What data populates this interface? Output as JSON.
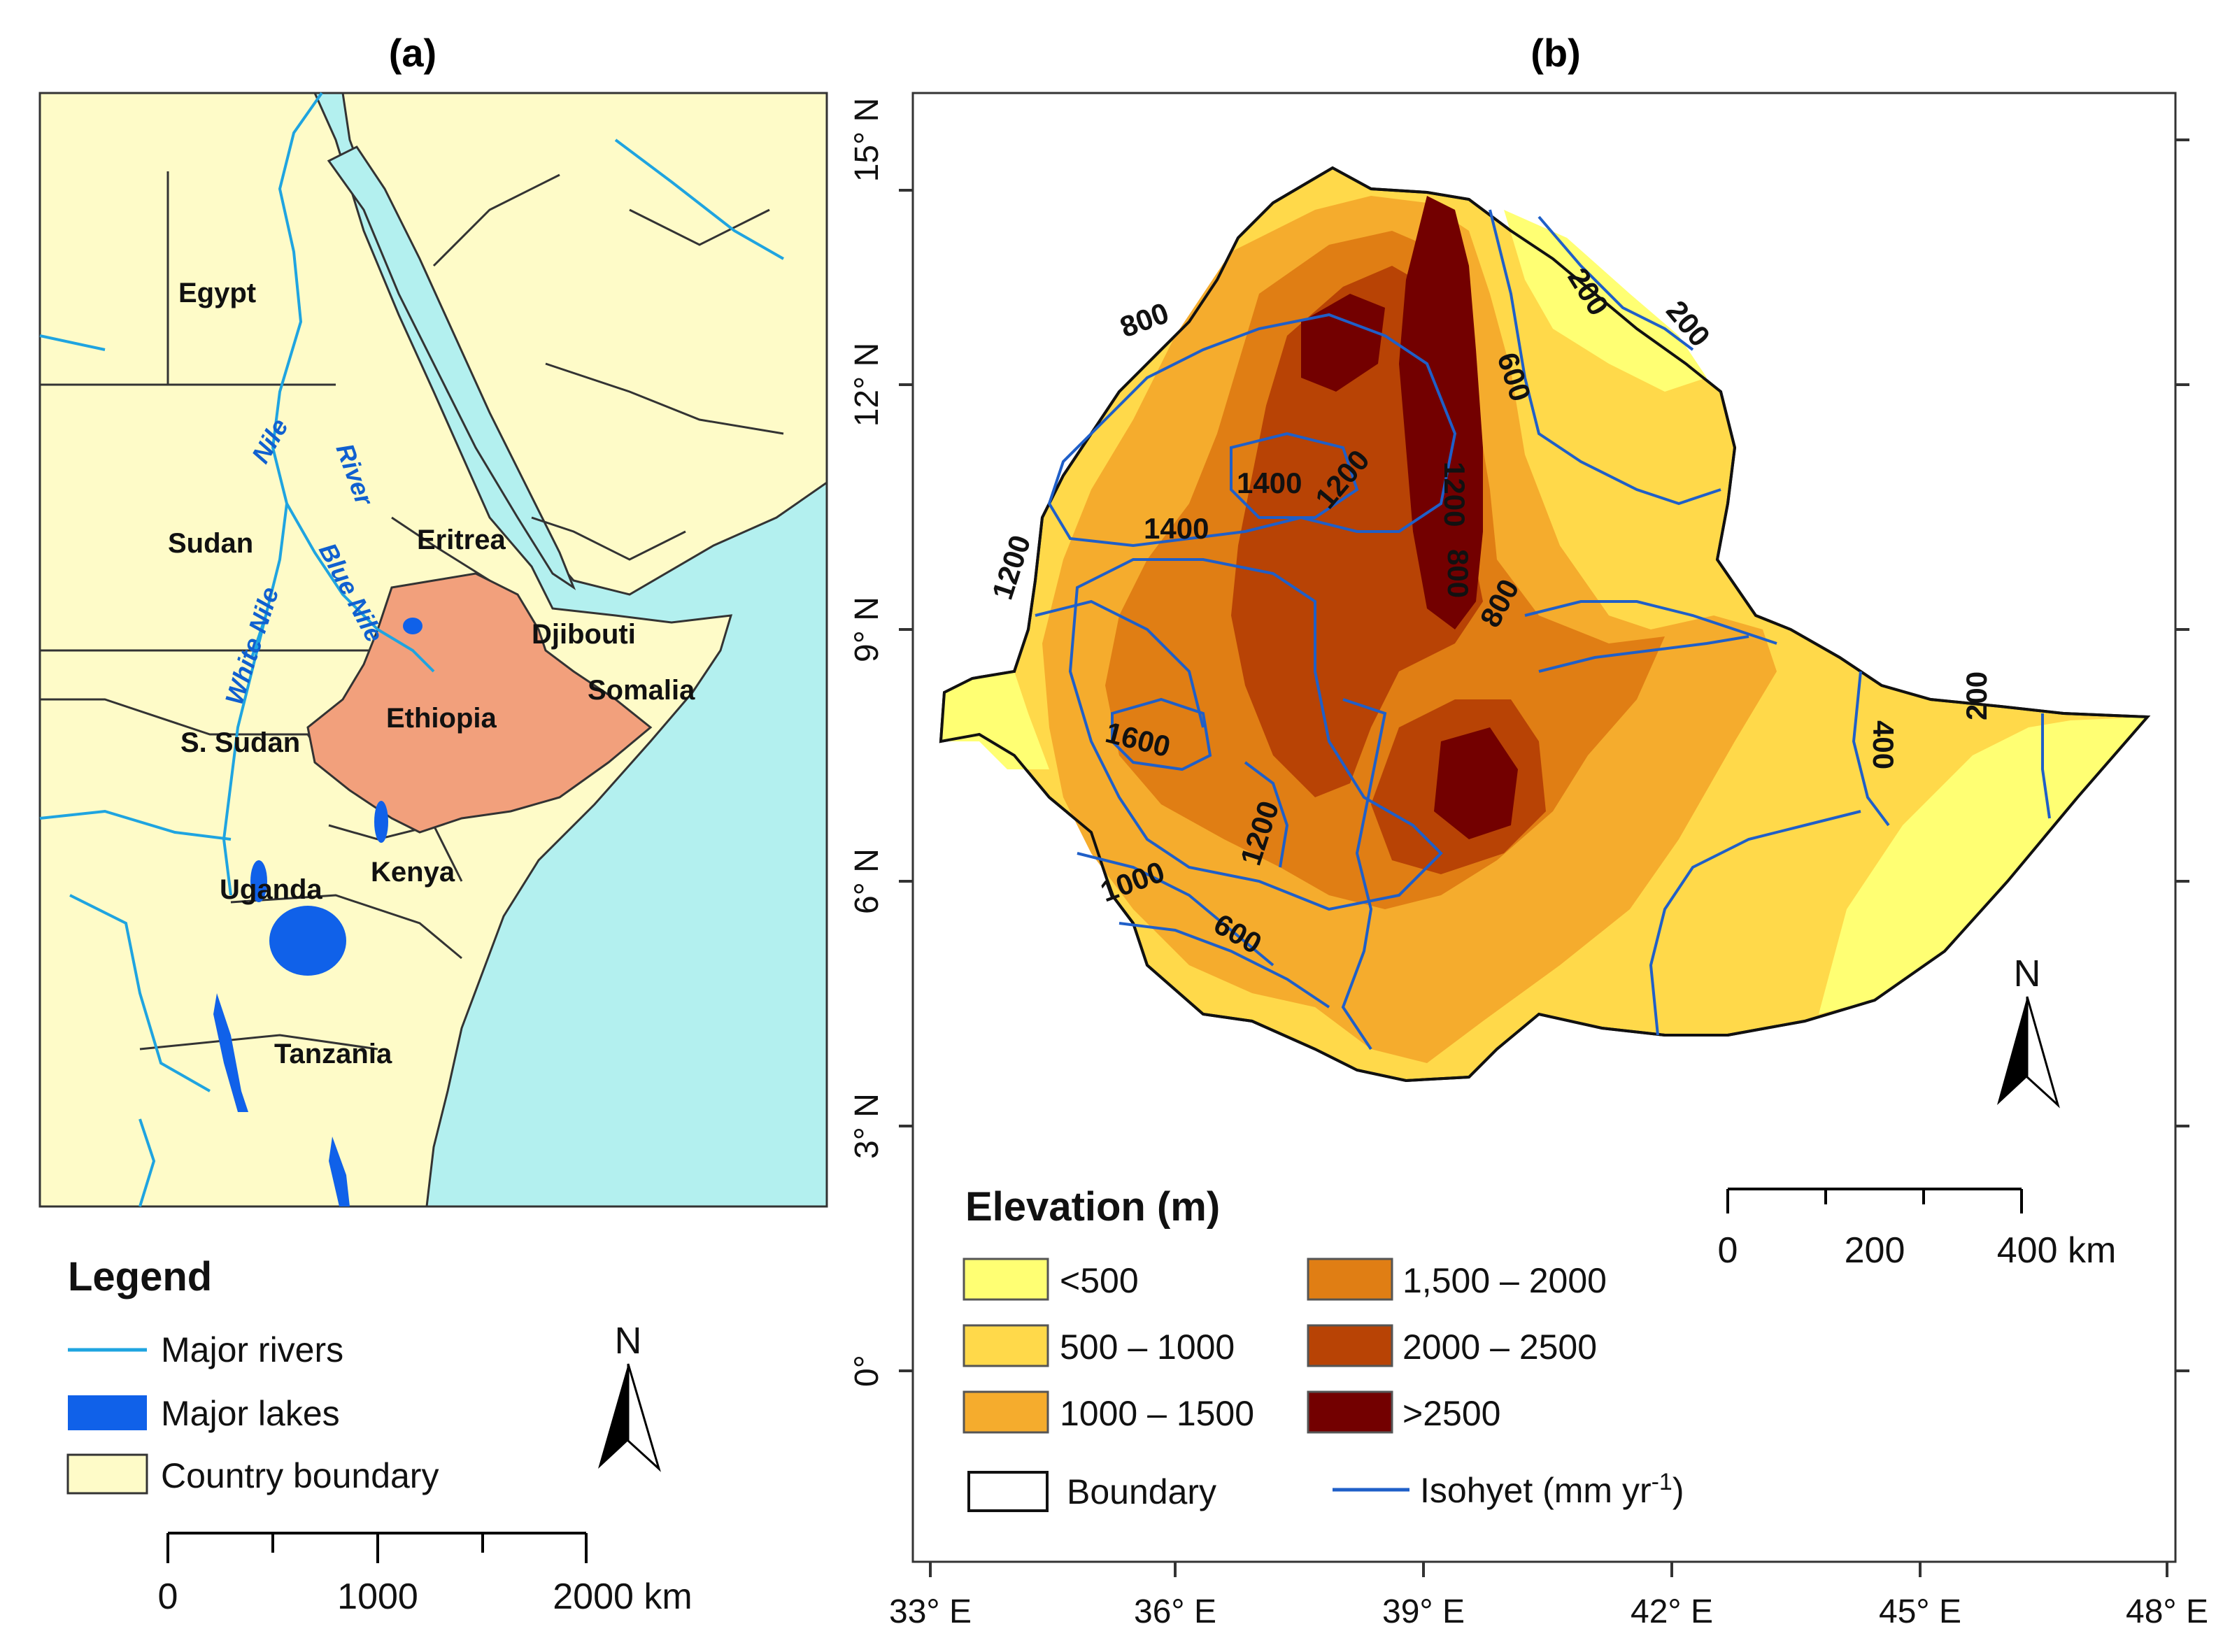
{
  "panel_a": {
    "title": "(a)",
    "countries": [
      "Egypt",
      "Sudan",
      "Eritrea",
      "Djibouti",
      "Ethiopia",
      "Somalia",
      "S. Sudan",
      "Uganda",
      "Kenya",
      "Tanzania"
    ],
    "rivers": [
      "Nile",
      "River",
      "Blue Nile",
      "White Nile"
    ],
    "legend": {
      "title": "Legend",
      "items": [
        "Major rivers",
        "Major lakes",
        "Country boundary"
      ]
    },
    "north": "N",
    "scale": [
      "0",
      "1000",
      "2000 km"
    ],
    "colors": {
      "sea": "#b3f0ef",
      "land": "#fefbc8",
      "ethiopia": "#f2a07c",
      "river": "#1fa4e0",
      "lake": "#1061e9"
    }
  },
  "panel_b": {
    "title": "(b)",
    "lat_ticks": [
      "15° N",
      "12° N",
      "9° N",
      "6° N",
      "3° N",
      "0°"
    ],
    "lon_ticks": [
      "33° E",
      "36° E",
      "39° E",
      "42° E",
      "45° E",
      "48° E"
    ],
    "isohyet_labels": [
      "200",
      "200",
      "800",
      "600",
      "1400",
      "1200",
      "1200",
      "1400",
      "800",
      "1200",
      "800",
      "1600",
      "400",
      "200",
      "1200",
      "1000",
      "600"
    ],
    "legend": {
      "title": "Elevation (m)",
      "classes": [
        {
          "label": "<500",
          "color": "#ffff73"
        },
        {
          "label": "500 – 1000",
          "color": "#ffd94a"
        },
        {
          "label": "1000 – 1500",
          "color": "#f5ac2d"
        },
        {
          "label": "1,500 – 2000",
          "color": "#e07e14"
        },
        {
          "label": "2000 – 2500",
          "color": "#b84305"
        },
        {
          "label": ">2500",
          "color": "#730000"
        }
      ],
      "boundary": "Boundary",
      "isohyet": "Isohyet (mm yr",
      "isohyet_sup": "-1",
      "isohyet_close": ")"
    },
    "north": "N",
    "scale": [
      "0",
      "200",
      "400 km"
    ],
    "colors": {
      "isohyet": "#1f5fc8"
    }
  }
}
